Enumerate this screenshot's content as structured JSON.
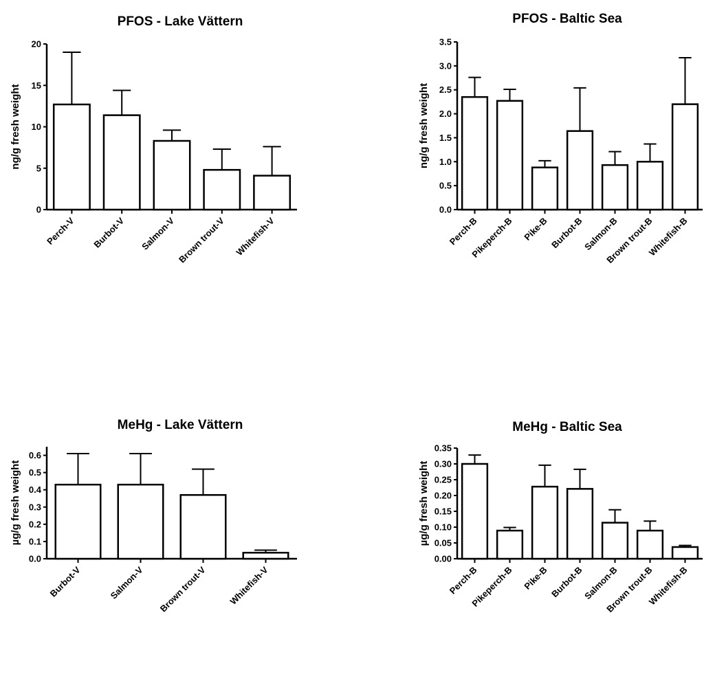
{
  "chart_data": [
    {
      "type": "bar",
      "title": "PFOS - Lake Vättern",
      "xlabel": "",
      "ylabel": "ng/g fresh weight",
      "categories": [
        "Perch-V",
        "Burbot-V",
        "Salmon-V",
        "Brown trout-V",
        "Whitefish-V"
      ],
      "values": [
        12.7,
        11.4,
        8.3,
        4.8,
        4.1
      ],
      "error_upper": [
        19.0,
        14.4,
        9.6,
        7.3,
        7.6
      ],
      "ylim": [
        0,
        20
      ],
      "yticks": [
        0,
        5,
        10,
        15,
        20
      ],
      "ytick_labels": [
        "0",
        "5",
        "10",
        "15",
        "20"
      ],
      "grid": false,
      "bar_fill": "#ffffff",
      "bar_stroke": "#000000"
    },
    {
      "type": "bar",
      "title": "PFOS - Baltic Sea",
      "xlabel": "",
      "ylabel": "ng/g fresh weight",
      "categories": [
        "Perch-B",
        "Pikeperch-B",
        "Pike-B",
        "Burbot-B",
        "Salmon-B",
        "Brown trout-B",
        "Whitefish-B"
      ],
      "values": [
        2.35,
        2.27,
        0.88,
        1.64,
        0.93,
        1.0,
        2.2
      ],
      "error_upper": [
        2.76,
        2.51,
        1.02,
        2.54,
        1.21,
        1.37,
        3.17
      ],
      "ylim": [
        0,
        3.5
      ],
      "yticks": [
        0,
        0.5,
        1,
        1.5,
        2,
        2.5,
        3,
        3.5
      ],
      "ytick_labels": [
        "0.0",
        "0.5",
        "1.0",
        "1.5",
        "2.0",
        "2.5",
        "3.0",
        "3.5"
      ],
      "grid": false,
      "bar_fill": "#ffffff",
      "bar_stroke": "#000000"
    },
    {
      "type": "bar",
      "title": "MeHg - Lake Vättern",
      "xlabel": "",
      "ylabel": "µg/g fresh weight",
      "categories": [
        "Burbot-V",
        "Salmon-V",
        "Brown trout-V",
        "Whitefish-V"
      ],
      "values": [
        0.43,
        0.43,
        0.37,
        0.035
      ],
      "error_upper": [
        0.61,
        0.61,
        0.52,
        0.05
      ],
      "ylim": [
        0,
        0.65
      ],
      "yticks": [
        0,
        0.1,
        0.2,
        0.3,
        0.4,
        0.5,
        0.6
      ],
      "ytick_labels": [
        "0.0",
        "0.1",
        "0.2",
        "0.3",
        "0.4",
        "0.5",
        "0.6"
      ],
      "grid": false,
      "bar_fill": "#ffffff",
      "bar_stroke": "#000000"
    },
    {
      "type": "bar",
      "title": "MeHg - Baltic Sea",
      "xlabel": "",
      "ylabel": "µg/g fresh weight",
      "categories": [
        "Perch-B",
        "Pikeperch-B",
        "Pike-B",
        "Burbot-B",
        "Salmon-B",
        "Brown trout-B",
        "Whitefish-B"
      ],
      "values": [
        0.3,
        0.089,
        0.228,
        0.221,
        0.114,
        0.089,
        0.037
      ],
      "error_upper": [
        0.328,
        0.099,
        0.296,
        0.283,
        0.155,
        0.119,
        0.042
      ],
      "ylim": [
        0,
        0.35
      ],
      "yticks": [
        0,
        0.05,
        0.1,
        0.15,
        0.2,
        0.25,
        0.3,
        0.35
      ],
      "ytick_labels": [
        "0.00",
        "0.05",
        "0.10",
        "0.15",
        "0.20",
        "0.25",
        "0.30",
        "0.35"
      ],
      "grid": false,
      "bar_fill": "#ffffff",
      "bar_stroke": "#000000"
    }
  ]
}
